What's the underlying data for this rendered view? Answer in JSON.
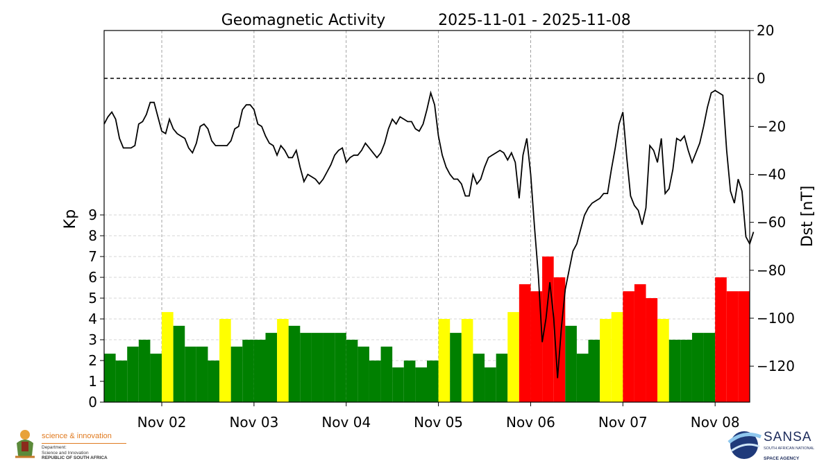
{
  "chart_data": {
    "type": "bar",
    "title": "Geomagnetic Activity",
    "date_range": "2025-11-01 - 2025-11-08",
    "x_tick_labels": [
      "Nov 02",
      "Nov 03",
      "Nov 04",
      "Nov 05",
      "Nov 06",
      "Nov 07",
      "Nov 08"
    ],
    "x_range_days": [
      0.375,
      7.375
    ],
    "kp_axis": {
      "label": "Kp",
      "ticks": [
        0,
        1,
        2,
        3,
        4,
        5,
        6,
        7,
        8,
        9
      ],
      "ylim": [
        0,
        9
      ]
    },
    "dst_axis": {
      "label": "Dst [nT]",
      "ticks": [
        20,
        0,
        -20,
        -40,
        -60,
        -80,
        -100,
        -120
      ],
      "ylim": [
        -135,
        20
      ],
      "reference_line": 0
    },
    "kp_colors": {
      "quiet": "#008000",
      "active": "#ffff00",
      "storm": "#ff0000"
    },
    "kp_series": {
      "name": "Kp",
      "interval_hours": 3,
      "start_day": 0.375,
      "values": [
        2.33,
        2.0,
        2.67,
        3.0,
        2.33,
        4.33,
        3.67,
        2.67,
        2.67,
        2.0,
        4.0,
        2.67,
        3.0,
        3.0,
        3.33,
        4.0,
        3.67,
        3.33,
        3.33,
        3.33,
        3.33,
        3.0,
        2.67,
        2.0,
        2.67,
        1.67,
        2.0,
        1.67,
        2.0,
        4.0,
        3.33,
        4.0,
        2.33,
        1.67,
        2.33,
        4.33,
        5.67,
        5.33,
        7.0,
        6.0,
        3.67,
        2.33,
        3.0,
        4.0,
        4.33,
        5.33,
        5.67,
        5.0,
        4.0,
        3.0,
        3.0,
        3.33,
        3.33,
        6.0,
        5.33,
        5.33
      ]
    },
    "dst_series": {
      "name": "Dst",
      "interval_hours": 1,
      "start_day": 0.375,
      "values": [
        -19,
        -16,
        -14,
        -17,
        -25,
        -29,
        -29,
        -29,
        -28,
        -19,
        -18,
        -15,
        -10,
        -10,
        -16,
        -22,
        -23,
        -17,
        -21,
        -23,
        -24,
        -25,
        -29,
        -31,
        -27,
        -20,
        -19,
        -21,
        -26,
        -28,
        -28,
        -28,
        -28,
        -26,
        -21,
        -20,
        -13,
        -11,
        -11,
        -13,
        -19,
        -20,
        -24,
        -27,
        -28,
        -32,
        -28,
        -30,
        -33,
        -33,
        -30,
        -37,
        -43,
        -40,
        -41,
        -42,
        -44,
        -42,
        -39,
        -36,
        -32,
        -30,
        -29,
        -35,
        -33,
        -32,
        -32,
        -30,
        -27,
        -29,
        -31,
        -33,
        -31,
        -27,
        -21,
        -17,
        -19,
        -16,
        -17,
        -18,
        -18,
        -21,
        -22,
        -19,
        -13,
        -6,
        -11,
        -24,
        -32,
        -37,
        -40,
        -42,
        -42,
        -44,
        -49,
        -49,
        -40,
        -44,
        -42,
        -37,
        -33,
        -32,
        -31,
        -30,
        -31,
        -34,
        -31,
        -35,
        -50,
        -32,
        -25,
        -40,
        -62,
        -82,
        -110,
        -100,
        -85,
        -100,
        -125,
        -104,
        -88,
        -80,
        -72,
        -69,
        -63,
        -57,
        -54,
        -52,
        -51,
        -50,
        -48,
        -48,
        -38,
        -29,
        -19,
        -14,
        -33,
        -49,
        -53,
        -55,
        -61,
        -54,
        -28,
        -30,
        -35,
        -25,
        -48,
        -46,
        -38,
        -25,
        -26,
        -24,
        -30,
        -35,
        -31,
        -27,
        -20,
        -12,
        -6,
        -5,
        -6,
        -7,
        -30,
        -47,
        -52,
        -42,
        -47,
        -66,
        -69,
        -64
      ]
    }
  }
}
